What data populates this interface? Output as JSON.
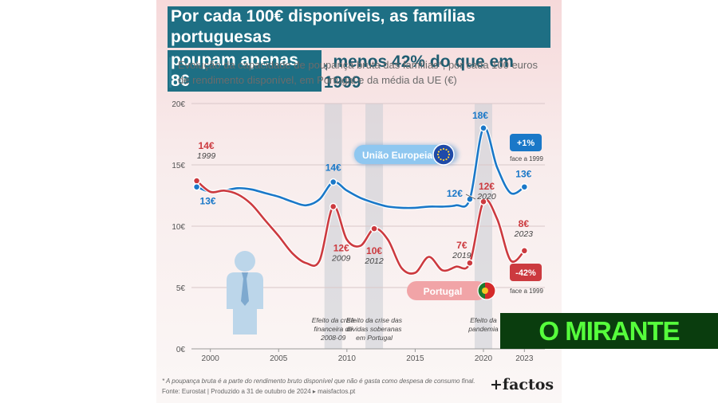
{
  "title": {
    "line1": "Por cada 100€ disponíveis, as famílias portuguesas",
    "line2_highlight": "poupam apenas 8€",
    "line2_rest": ", menos 42% do que em 1999"
  },
  "subtitle": {
    "line1": "Evolução da capacidade de poupança bruta das famílias*, por cada 100 euros",
    "line2": "de rendimento disponível, em Portugal e da média da UE (€)"
  },
  "colors": {
    "eu": "#1a78c8",
    "portugal": "#cc3a3f",
    "band": "#c9ccd3",
    "accent": "#1e6f84"
  },
  "chart_data": {
    "type": "line",
    "title": "Evolução da capacidade de poupança bruta das famílias*, por cada 100 euros de rendimento disponível, em Portugal e da média da UE (€)",
    "xlabel": "",
    "ylabel": "",
    "xlim": [
      1998.5,
      2024.5
    ],
    "ylim": [
      0,
      20
    ],
    "y_ticks": [
      0,
      5,
      10,
      15,
      20
    ],
    "y_tick_labels": [
      "0€",
      "5€",
      "10€",
      "15€",
      "20€"
    ],
    "x_ticks": [
      2000,
      2005,
      2010,
      2015,
      2020,
      2023
    ],
    "x_tick_labels": [
      "2000",
      "2005",
      "2010",
      "2015",
      "2020",
      "2023"
    ],
    "grid": true,
    "series": [
      {
        "name": "União Europeia",
        "x": [
          1999,
          2000,
          2001,
          2002,
          2003,
          2004,
          2005,
          2006,
          2007,
          2008,
          2009,
          2010,
          2011,
          2012,
          2013,
          2014,
          2015,
          2016,
          2017,
          2018,
          2019,
          2020,
          2021,
          2022,
          2023
        ],
        "values": [
          13.2,
          12.8,
          12.9,
          13.1,
          13.0,
          12.7,
          12.4,
          12.0,
          11.7,
          12.2,
          13.6,
          12.9,
          12.3,
          11.9,
          11.6,
          11.5,
          11.5,
          11.6,
          11.6,
          11.7,
          12.2,
          18.0,
          14.8,
          12.7,
          13.2
        ]
      },
      {
        "name": "Portugal",
        "x": [
          1999,
          2000,
          2001,
          2002,
          2003,
          2004,
          2005,
          2006,
          2007,
          2008,
          2009,
          2010,
          2011,
          2012,
          2013,
          2014,
          2015,
          2016,
          2017,
          2018,
          2019,
          2020,
          2021,
          2022,
          2023
        ],
        "values": [
          13.7,
          12.8,
          12.9,
          12.6,
          11.8,
          10.5,
          9.2,
          7.8,
          7.0,
          7.2,
          11.6,
          8.9,
          8.4,
          9.8,
          8.9,
          6.6,
          6.2,
          7.5,
          6.4,
          6.7,
          7.0,
          12.0,
          10.6,
          7.2,
          8.0
        ]
      }
    ],
    "point_labels": [
      {
        "series": "Portugal",
        "x": 1999,
        "value": "14€",
        "year": "1999"
      },
      {
        "series": "União Europeia",
        "x": 1999,
        "value": "13€",
        "year": ""
      },
      {
        "series": "União Europeia",
        "x": 2009,
        "value": "14€",
        "year": ""
      },
      {
        "series": "Portugal",
        "x": 2009,
        "value": "12€",
        "year": "2009"
      },
      {
        "series": "Portugal",
        "x": 2012,
        "value": "10€",
        "year": "2012"
      },
      {
        "series": "Portugal",
        "x": 2019,
        "value": "7€",
        "year": "2019"
      },
      {
        "series": "União Europeia",
        "x": 2019,
        "value": "12€",
        "year": ""
      },
      {
        "series": "União Europeia",
        "x": 2020,
        "value": "18€",
        "year": ""
      },
      {
        "series": "Portugal",
        "x": 2020,
        "value": "12€",
        "year": "2020"
      },
      {
        "series": "União Europeia",
        "x": 2023,
        "value": "13€",
        "year": ""
      },
      {
        "series": "Portugal",
        "x": 2023,
        "value": "8€",
        "year": "2023"
      }
    ],
    "bands": [
      {
        "x": 2009,
        "label": [
          "Efeito da crise",
          "financeira de",
          "2008-09"
        ]
      },
      {
        "x": 2012,
        "label": [
          "Efeito da crise das",
          "dívidas soberanas",
          "em Portugal"
        ]
      },
      {
        "x": 2020,
        "label": [
          "Efeito da",
          "pandemia"
        ]
      }
    ],
    "legend": {
      "eu": "União Europeia",
      "portugal": "Portugal"
    },
    "change_badges": [
      {
        "series": "União Europeia",
        "value": "+1%",
        "note": "face a 1999"
      },
      {
        "series": "Portugal",
        "value": "-42%",
        "note": "face a 1999"
      }
    ]
  },
  "footnote": "* A poupança bruta é a parte do rendimento bruto disponível que não é gasta como despesa de consumo final.",
  "source": "Fonte: Eurostat | Produzido a 31 de outubro de 2024 ▸ maisfactos.pt",
  "brand": "+factos",
  "watermark": "O MIRANTE"
}
